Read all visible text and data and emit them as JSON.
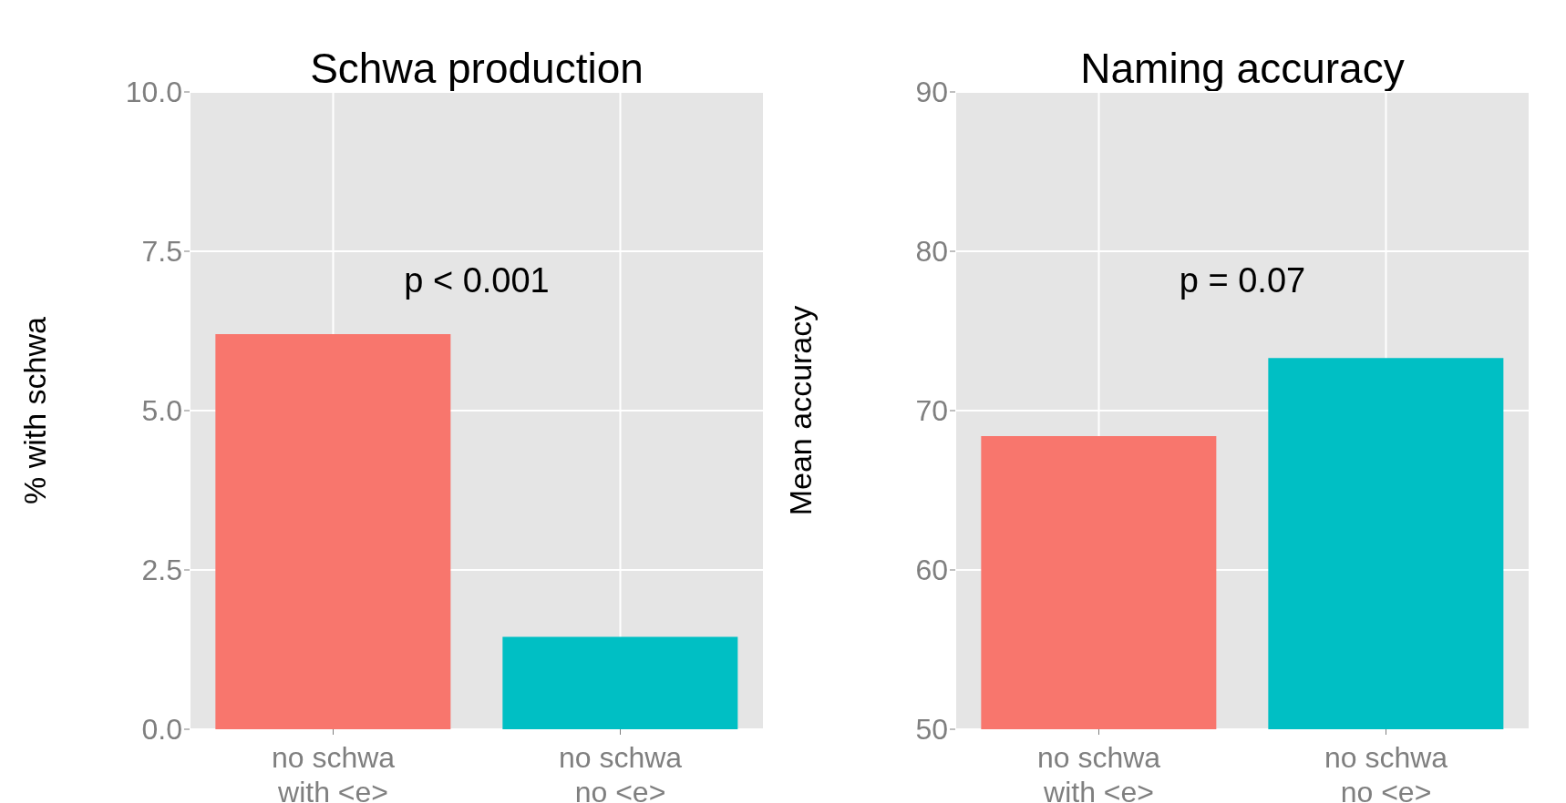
{
  "chart_data": [
    {
      "type": "bar",
      "title": "Schwa production",
      "ylabel": "% with schwa",
      "categories": [
        "no schwa\nwith <e>",
        "no schwa\nno <e>"
      ],
      "values": [
        6.2,
        1.45
      ],
      "colors": [
        "#f8766d",
        "#00bfc4"
      ],
      "ylim": [
        0,
        10
      ],
      "yticks": [
        {
          "value": 0,
          "label": "0.0"
        },
        2.5,
        {
          "value": 5,
          "label": "5.0"
        },
        7.5,
        {
          "value": 10,
          "label": "10.0"
        }
      ],
      "grid": true,
      "annotations": [
        "p < 0.001"
      ]
    },
    {
      "type": "bar",
      "title": "Naming accuracy",
      "ylabel": "Mean accuracy",
      "categories": [
        "no schwa\nwith <e>",
        "no schwa\nno <e>"
      ],
      "values": [
        68.4,
        73.3
      ],
      "colors": [
        "#f8766d",
        "#00bfc4"
      ],
      "ylim": [
        50,
        90
      ],
      "yticks": [
        50,
        60,
        70,
        80,
        90
      ],
      "grid": true,
      "annotations": [
        "p = 0.07"
      ]
    }
  ]
}
